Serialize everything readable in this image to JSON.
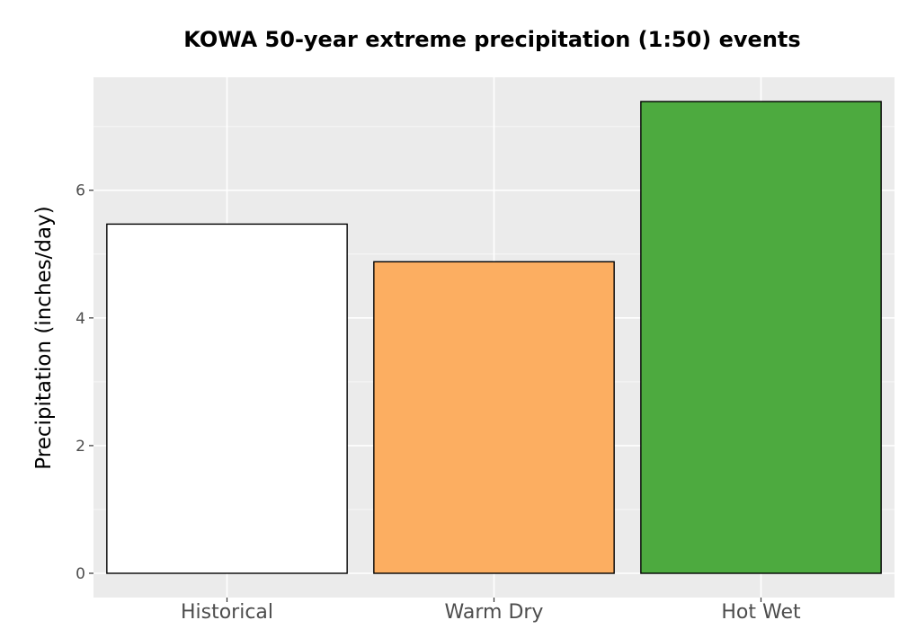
{
  "chart_data": {
    "type": "bar",
    "title": "KOWA 50-year extreme precipitation (1:50) events",
    "xlabel": "",
    "ylabel": "Precipitation (inches/day)",
    "categories": [
      "Historical",
      "Warm Dry",
      "Hot Wet"
    ],
    "values": [
      5.47,
      4.88,
      7.39
    ],
    "colors": [
      "#ffffff",
      "#fcae61",
      "#4daa3f"
    ],
    "ylim": [
      -0.38,
      7.77
    ],
    "yticks": [
      0,
      2,
      4,
      6
    ],
    "ytick_labels": [
      "0",
      "2",
      "4",
      "6"
    ],
    "grid": true,
    "legend": "none"
  }
}
